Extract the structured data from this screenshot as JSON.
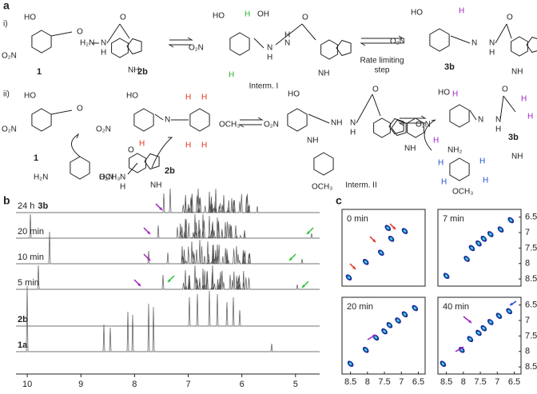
{
  "panel_a": {
    "label": "a",
    "row_labels": [
      "i)",
      "ii)"
    ],
    "compounds": [
      "1",
      "2b",
      "3b",
      "1",
      "2b",
      "3b"
    ],
    "captions": [
      "Interm. I",
      "Rate limiting",
      "step",
      "Interm. II"
    ],
    "atoms": [
      "HO",
      "O₂N",
      "O",
      "H₂N",
      "N",
      "H",
      "O",
      "NH",
      "HO",
      "O₂N",
      "H",
      "OH",
      "H",
      "N",
      "H",
      "N",
      "H",
      "O",
      "NH",
      "HO",
      "O₂N",
      "H",
      "N",
      "N",
      "H",
      "O",
      "NH",
      "HO",
      "O₂N",
      "O",
      "H₂N",
      "OCH₃",
      "HO",
      "O₂N",
      "N",
      "H",
      "H",
      "H",
      "H",
      "H",
      "OCH₃",
      "O",
      "H₂N",
      "N",
      "H",
      "NH",
      "HO",
      "O₂N",
      "NH",
      "NH",
      "N",
      "H",
      "O",
      "NH",
      "OCH₃",
      "HO",
      "O₂N",
      "H",
      "H",
      "N",
      "N",
      "H",
      "O",
      "H",
      "H",
      "NH",
      "NH₂",
      "H",
      "H",
      "H",
      "H",
      "OCH₃"
    ]
  },
  "panel_b": {
    "label": "b",
    "xlim": [
      10.21,
      4.55
    ],
    "xticks": [
      10,
      9,
      8,
      7,
      6,
      5
    ],
    "traces": [
      {
        "label": "24 h",
        "compound": "3b"
      },
      {
        "label": "20 min"
      },
      {
        "label": "10 min"
      },
      {
        "label": "5 min"
      },
      {
        "compound": "2b"
      },
      {
        "compound": "1a"
      }
    ]
  },
  "panel_c": {
    "label": "c",
    "xlim": [
      8.75,
      6.3
    ],
    "ylim": [
      6.25,
      8.73
    ],
    "xticks": [
      8.5,
      8,
      7.5,
      7,
      6.5
    ],
    "yticks": [
      6.5,
      7,
      7.5,
      8,
      8.5
    ],
    "plots": [
      "0 min",
      "7 min",
      "20 min",
      "40 min"
    ]
  }
}
